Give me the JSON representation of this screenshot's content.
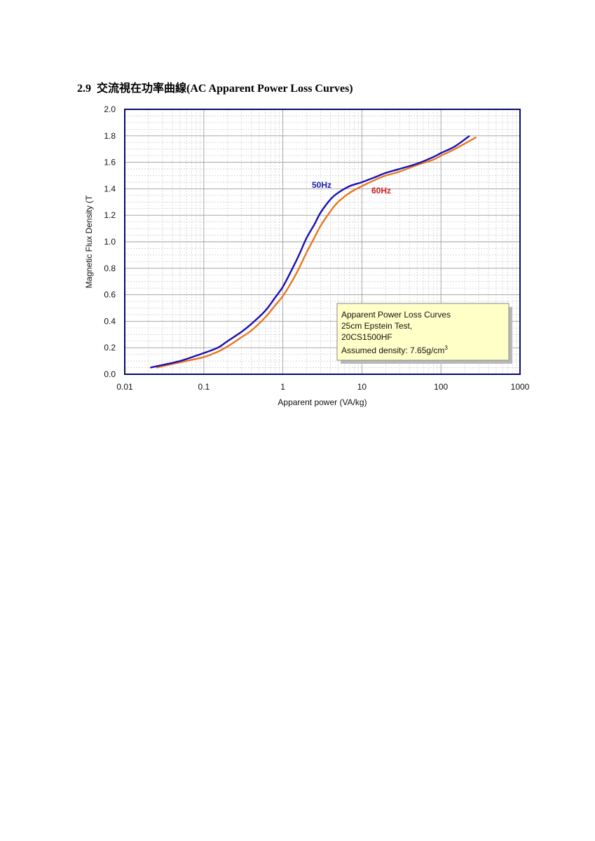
{
  "heading": {
    "number": "2.9",
    "text": "交流視在功率曲線(AC Apparent Power Loss Curves)"
  },
  "chart_data": {
    "type": "line",
    "xscale": "log",
    "xlim": [
      0.01,
      1000
    ],
    "ylim": [
      0.0,
      2.0
    ],
    "xlabel": "Apparent power (VA/kg)",
    "ylabel": "Magnetic Flux Density (T",
    "xticks": [
      "0.01",
      "0.1",
      "1",
      "10",
      "100",
      "1000"
    ],
    "yticks": [
      "0.0",
      "0.2",
      "0.4",
      "0.6",
      "0.8",
      "1.0",
      "1.2",
      "1.4",
      "1.6",
      "1.8",
      "2.0"
    ],
    "grid": true,
    "colors": {
      "50Hz": "#1a0fb5",
      "60Hz": "#e87722",
      "label_50Hz": "#1a1aa8",
      "label_60Hz": "#d42020",
      "plot_border": "#0a0a6e",
      "note_bg": "#ffffc8"
    },
    "series": [
      {
        "name": "50Hz",
        "x": [
          0.021,
          0.03,
          0.05,
          0.08,
          0.1,
          0.15,
          0.2,
          0.3,
          0.4,
          0.6,
          0.8,
          1.0,
          1.3,
          1.6,
          2.0,
          2.5,
          3.0,
          4.0,
          5.0,
          7.0,
          10,
          15,
          20,
          30,
          50,
          80,
          100,
          150,
          230
        ],
        "y": [
          0.05,
          0.07,
          0.1,
          0.14,
          0.16,
          0.2,
          0.25,
          0.32,
          0.38,
          0.48,
          0.58,
          0.66,
          0.79,
          0.9,
          1.03,
          1.13,
          1.22,
          1.32,
          1.37,
          1.42,
          1.45,
          1.49,
          1.52,
          1.55,
          1.59,
          1.64,
          1.67,
          1.72,
          1.8
        ]
      },
      {
        "name": "60Hz",
        "x": [
          0.025,
          0.035,
          0.06,
          0.1,
          0.15,
          0.2,
          0.3,
          0.4,
          0.6,
          0.8,
          1.0,
          1.3,
          1.6,
          2.0,
          2.5,
          3.0,
          4.0,
          5.0,
          7.0,
          10,
          15,
          20,
          30,
          50,
          80,
          100,
          150,
          280
        ],
        "y": [
          0.05,
          0.07,
          0.1,
          0.13,
          0.17,
          0.21,
          0.28,
          0.33,
          0.43,
          0.52,
          0.59,
          0.7,
          0.8,
          0.92,
          1.03,
          1.12,
          1.23,
          1.3,
          1.37,
          1.42,
          1.47,
          1.5,
          1.53,
          1.58,
          1.62,
          1.65,
          1.7,
          1.79
        ]
      }
    ],
    "annotations": [
      {
        "series": "50Hz",
        "text": "50Hz"
      },
      {
        "series": "60Hz",
        "text": "60Hz"
      }
    ],
    "note": {
      "line1": "Apparent Power Loss Curves",
      "line2": "25cm Epstein Test,",
      "line3": "20CS1500HF",
      "line4_prefix": "Assumed density: 7.65g/cm",
      "line4_sup": "3"
    }
  }
}
